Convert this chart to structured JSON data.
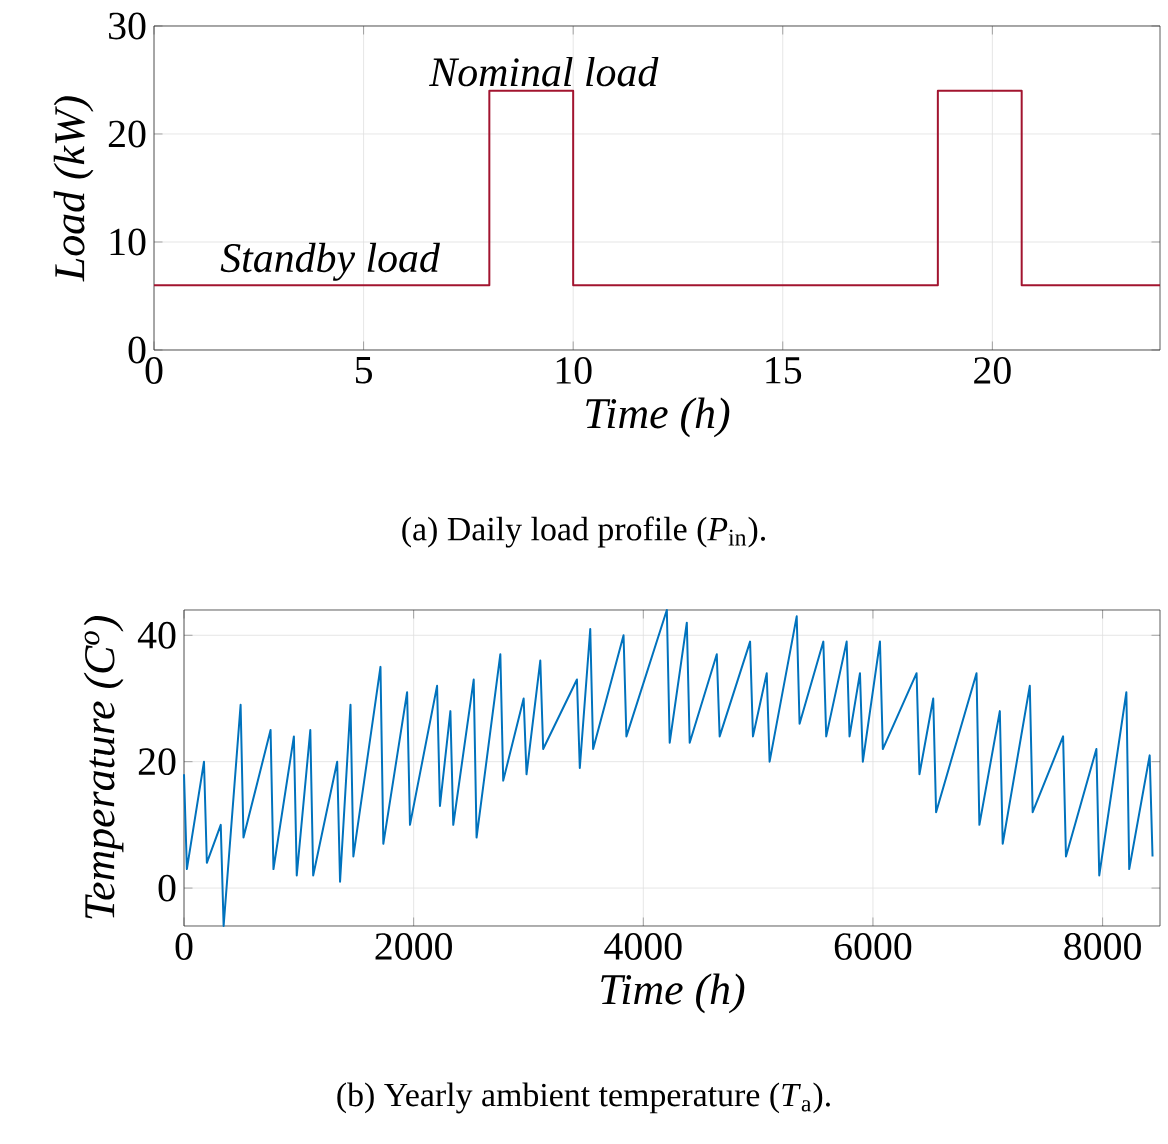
{
  "chart_data": [
    {
      "type": "step",
      "xlabel": "Time (h)",
      "ylabel": "Load (kW)",
      "xlim": [
        0,
        24
      ],
      "ylim": [
        0,
        30
      ],
      "xticks": [
        0,
        5,
        10,
        15,
        20
      ],
      "yticks": [
        0,
        10,
        20,
        30
      ],
      "grid": true,
      "color": "#a2142f",
      "x": [
        0,
        8,
        10,
        18.7,
        20.7,
        24
      ],
      "values": [
        6,
        24,
        6,
        24,
        6,
        6
      ],
      "annotations": [
        {
          "text": "Nominal load",
          "x": 9.3,
          "y": 24
        },
        {
          "text": "Standby load",
          "x": 4.2,
          "y": 6
        },
        "(a)  Daily load profile (*P*$_{in}$)."
      ]
    },
    {
      "type": "line",
      "xlabel": "Time (h)",
      "ylabel": "Temperature (C$^{o}$)",
      "xlim": [
        0,
        8500
      ],
      "ylim": [
        -6,
        44
      ],
      "xticks": [
        0,
        2000,
        4000,
        6000,
        8000
      ],
      "yticks": [
        0,
        20,
        40
      ],
      "grid": true,
      "color": "#0072bd",
      "x": [
        0,
        25,
        174,
        199,
        320,
        345,
        493,
        518,
        754,
        779,
        957,
        982,
        1100,
        1125,
        1334,
        1359,
        1450,
        1475,
        1711,
        1736,
        1943,
        1968,
        2204,
        2229,
        2320,
        2345,
        2523,
        2548,
        2755,
        2780,
        2958,
        2983,
        3103,
        3128,
        3422,
        3447,
        3538,
        3563,
        3828,
        3853,
        4205,
        4230,
        4379,
        4404,
        4640,
        4665,
        4930,
        4955,
        5075,
        5100,
        5336,
        5361,
        5568,
        5593,
        5771,
        5796,
        5887,
        5912,
        6061,
        6086,
        6380,
        6405,
        6525,
        6550,
        6902,
        6927,
        7105,
        7130,
        7366,
        7391,
        7656,
        7681,
        7946,
        7971,
        8207,
        8232,
        8410,
        8435
      ],
      "values": [
        18,
        3,
        20,
        4,
        10,
        -6,
        29,
        8,
        25,
        3,
        24,
        2,
        25,
        2,
        20,
        1,
        29,
        5,
        35,
        7,
        31,
        10,
        32,
        13,
        28,
        10,
        33,
        8,
        37,
        17,
        30,
        18,
        36,
        22,
        33,
        19,
        41,
        22,
        40,
        24,
        44,
        23,
        42,
        23,
        37,
        24,
        39,
        24,
        34,
        20,
        43,
        26,
        39,
        24,
        39,
        24,
        34,
        20,
        39,
        22,
        34,
        18,
        30,
        12,
        34,
        10,
        28,
        7,
        32,
        12,
        24,
        5,
        22,
        2,
        31,
        3,
        21,
        5
      ],
      "annotations": [
        "(b)  Yearly ambient temperature (*T*$_{a}$)."
      ]
    }
  ]
}
